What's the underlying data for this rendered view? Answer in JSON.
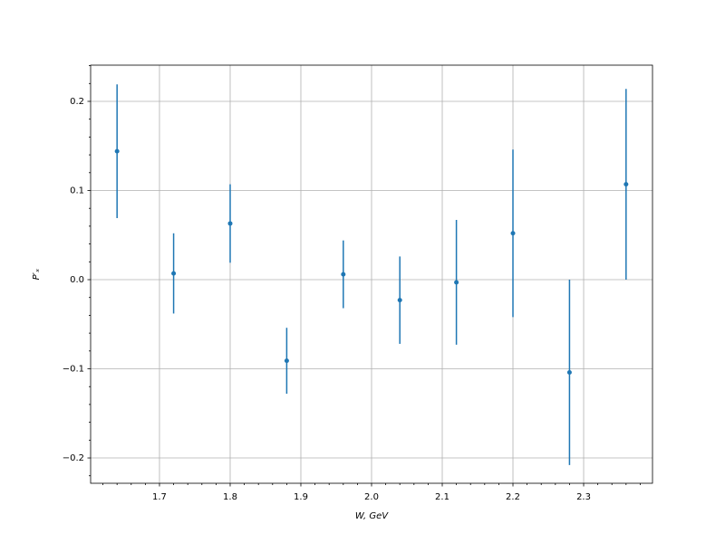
{
  "chart_data": {
    "type": "errorbar",
    "xlabel": "W, GeV",
    "ylabel": "P′ₓ",
    "x": [
      1.64,
      1.72,
      1.8,
      1.88,
      1.96,
      2.04,
      2.12,
      2.2,
      2.28,
      2.36
    ],
    "values": [
      0.144,
      0.007,
      0.063,
      -0.091,
      0.006,
      -0.023,
      -0.003,
      0.052,
      -0.104,
      0.107
    ],
    "errors": [
      0.075,
      0.045,
      0.044,
      0.037,
      0.038,
      0.049,
      0.07,
      0.094,
      0.104,
      0.107
    ],
    "color": "#1f77b4",
    "xlim": [
      1.6026,
      2.3974
    ],
    "ylim": [
      -0.2284,
      0.2406
    ],
    "xticks": [
      1.7,
      1.8,
      1.9,
      {
        "value": 2.0,
        "label": "2.0"
      },
      2.1,
      2.2,
      2.3
    ],
    "yticks": [
      {
        "value": -0.2,
        "label": "−0.2"
      },
      {
        "value": -0.1,
        "label": "−0.1"
      },
      {
        "value": 0,
        "label": "0.0"
      },
      0.1,
      0.2
    ],
    "xminorticks": [
      1.62,
      1.64,
      1.66,
      1.68,
      1.72,
      1.74,
      1.76,
      1.78,
      1.82,
      1.84,
      1.86,
      1.88,
      1.92,
      1.94,
      1.96,
      1.98,
      2.02,
      2.04,
      2.06,
      2.08,
      2.12,
      2.14,
      2.16,
      2.18,
      2.22,
      2.24,
      2.26,
      2.28,
      2.32,
      2.34,
      2.36,
      2.38
    ],
    "yminorticks": [
      -0.22,
      -0.18,
      -0.16,
      -0.14,
      -0.12,
      -0.08,
      -0.06,
      -0.04,
      -0.02,
      0.02,
      0.04,
      0.06,
      0.08,
      0.12,
      0.14,
      0.16,
      0.18,
      0.22,
      0.24
    ],
    "grid": true
  }
}
